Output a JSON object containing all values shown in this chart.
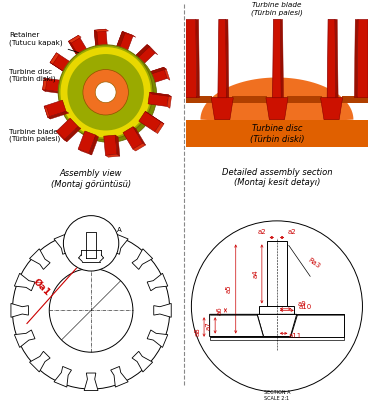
{
  "bg_color": "#ffffff",
  "title_left": "Assembly view\n(Montaj görüntüsü)",
  "title_right": "Detailed assembly section\n(Montaj kesit detayı)",
  "label_retainer": "Retainer\n(Tutucu kapak)",
  "label_disc": "Turbine disc\n(Türbin diski)",
  "label_blade": "Turbine blade\n(Türbin palesi)",
  "label_blade_top_right": "Turbine blade\n(Türbin palesi)",
  "label_disc_right": "Turbine disc\n(Türbin diski)",
  "dim_color": "#cc0000",
  "blade_red": "#cc1100",
  "blade_dark_red": "#8b0000",
  "blade_shadow": "#991100",
  "disc_olive": "#9aaa00",
  "disc_olive_dark": "#7a8a00",
  "disc_olive_light": "#c8d400",
  "disc_orange": "#e06000",
  "disc_orange_light": "#f07020",
  "disc_orange_dark": "#b04000",
  "retainer_yellow": "#e8d800",
  "hole_orange": "#e08040",
  "dashed_color": "#888888"
}
